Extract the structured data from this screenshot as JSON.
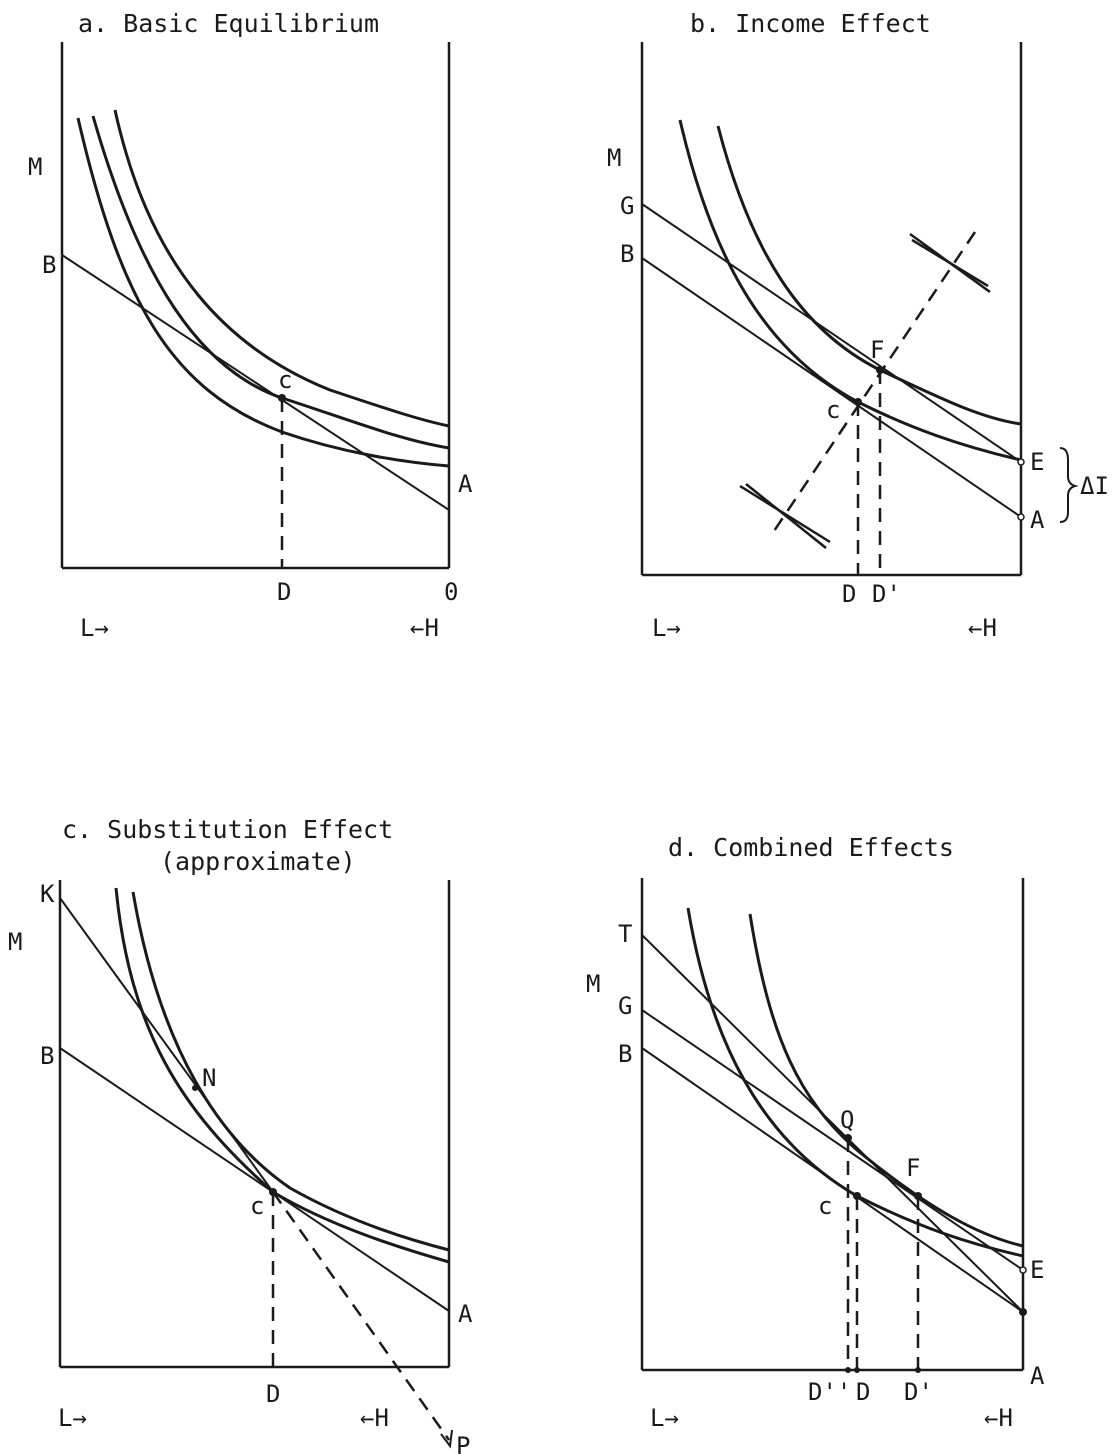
{
  "panels": {
    "a": {
      "title": "a.  Basic Equilibrium",
      "labels": {
        "m": "M",
        "b": "B",
        "c": "c",
        "a": "A",
        "d": "D",
        "o": "0",
        "l": "L→",
        "h": "←H"
      }
    },
    "b": {
      "title": "b.  Income Effect",
      "labels": {
        "m": "M",
        "g": "G",
        "b": "B",
        "f": "F",
        "c": "c",
        "e": "E",
        "a": "A",
        "delta": "ΔI",
        "d": "D",
        "dp": "D'",
        "l": "L→",
        "h": "←H"
      }
    },
    "c": {
      "title_line1": "c.  Substitution Effect",
      "title_line2": "(approximate)",
      "labels": {
        "m": "M",
        "k": "K",
        "b": "B",
        "n": "N",
        "c": "c",
        "a": "A",
        "d": "D",
        "p": "P",
        "l": "L→",
        "h": "←H"
      }
    },
    "d": {
      "title": "d.  Combined Effects",
      "labels": {
        "m": "M",
        "t": "T",
        "g": "G",
        "b": "B",
        "q": "Q",
        "f": "F",
        "c": "c",
        "e": "E",
        "a": "A",
        "dpp": "D''",
        "d": "D",
        "dp": "D'",
        "l": "L→",
        "h": "←H"
      }
    }
  }
}
